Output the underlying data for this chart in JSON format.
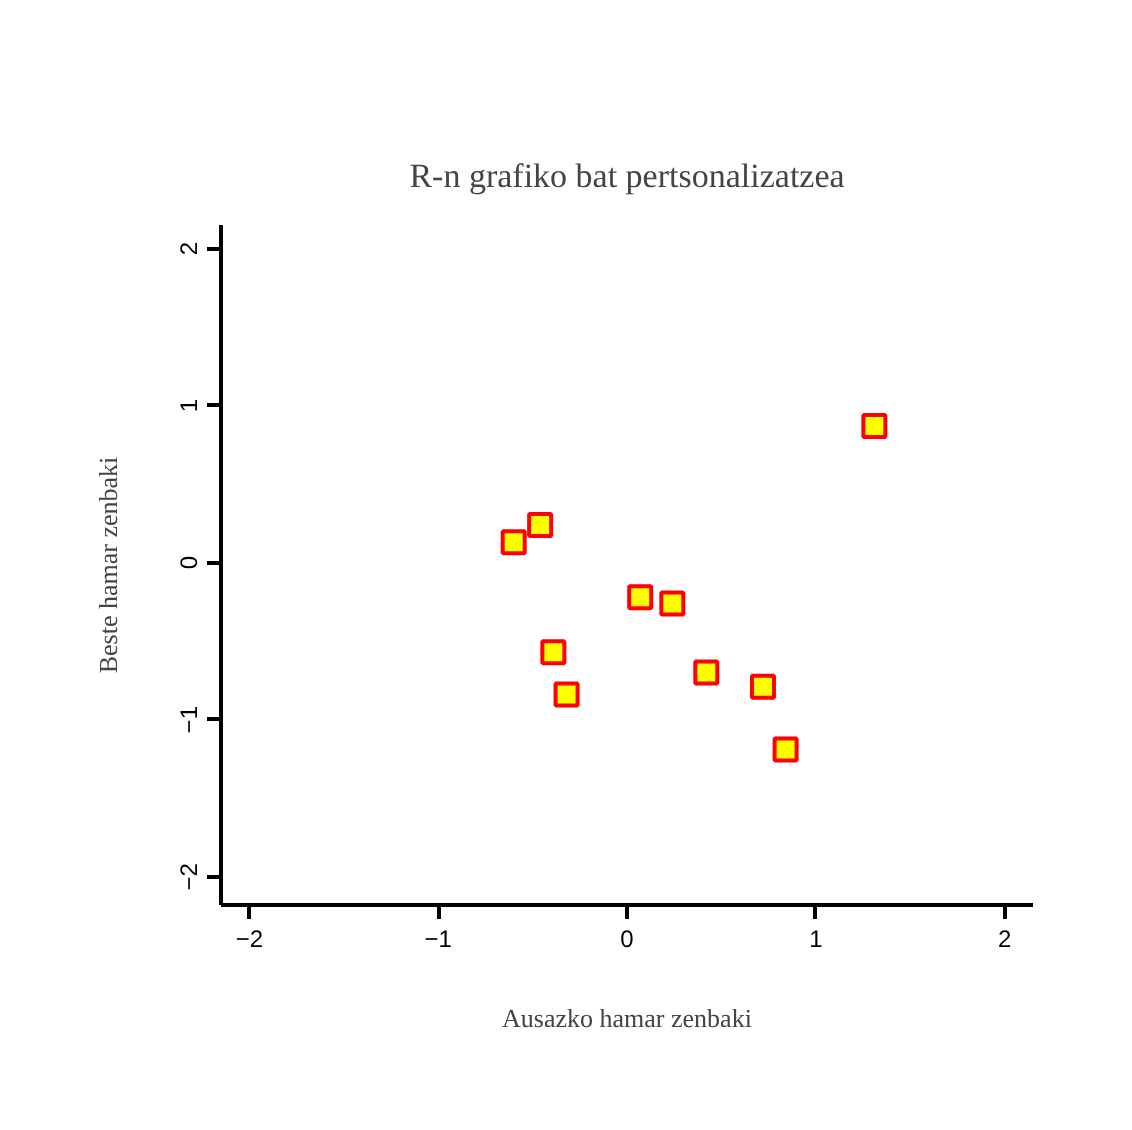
{
  "chart_data": {
    "type": "scatter",
    "title": "R-n grafiko bat pertsonalizatzea",
    "xlabel": "Ausazko hamar zenbaki",
    "ylabel": "Beste hamar zenbaki",
    "x": [
      -0.6,
      -0.46,
      -0.39,
      -0.32,
      0.07,
      0.24,
      0.42,
      0.72,
      0.84,
      1.31
    ],
    "values": [
      0.13,
      0.24,
      -0.57,
      -0.84,
      -0.22,
      -0.26,
      -0.7,
      -0.79,
      -1.19,
      0.87
    ],
    "color": "#ffff00",
    "marker": "square",
    "grid": false,
    "xlim": [
      -2.15,
      2.15
    ],
    "ylim": [
      -2.18,
      2.15
    ],
    "xticks": [
      -2,
      -1,
      0,
      1,
      2
    ],
    "yticks": [
      -2,
      -1,
      0,
      1,
      2
    ]
  }
}
